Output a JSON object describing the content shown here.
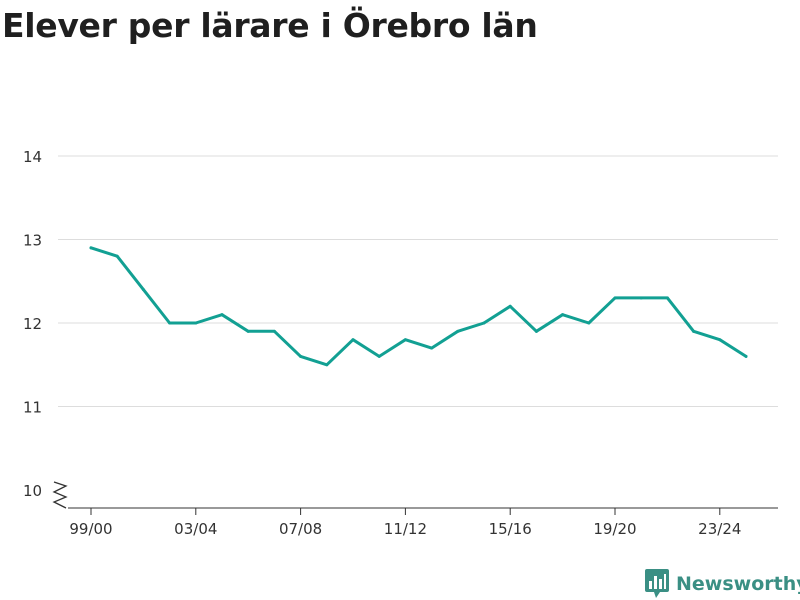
{
  "title": "Elever per lärare i Örebro län",
  "brand": {
    "name": "Newsworthy",
    "color": "#3a8f84",
    "icon": "newsworthy-logo-icon"
  },
  "colors": {
    "line": "#12a093",
    "grid": "#dddddd",
    "axis": "#333333"
  },
  "chart_data": {
    "type": "line",
    "title": "Elever per lärare i Örebro län",
    "xlabel": "",
    "ylabel": "",
    "categories": [
      "99/00",
      "00/01",
      "01/02",
      "02/03",
      "03/04",
      "04/05",
      "05/06",
      "06/07",
      "07/08",
      "08/09",
      "09/10",
      "10/11",
      "11/12",
      "12/13",
      "13/14",
      "14/15",
      "15/16",
      "16/17",
      "17/18",
      "18/19",
      "19/20",
      "20/21",
      "21/22",
      "22/23",
      "23/24",
      "24/25"
    ],
    "x_tick_labels": [
      "99/00",
      "03/04",
      "07/08",
      "11/12",
      "15/16",
      "19/20",
      "23/24"
    ],
    "values": [
      12.9,
      12.8,
      12.4,
      12.0,
      12.0,
      12.1,
      11.9,
      11.9,
      11.6,
      11.5,
      11.8,
      11.6,
      11.8,
      11.7,
      11.9,
      12.0,
      12.2,
      11.9,
      12.1,
      12.0,
      12.3,
      12.3,
      12.3,
      11.9,
      11.8,
      11.6
    ],
    "ylim": [
      10,
      14
    ],
    "y_ticks": [
      10,
      11,
      12,
      13,
      14
    ],
    "axis_break": true,
    "grid": true,
    "legend": "none"
  }
}
